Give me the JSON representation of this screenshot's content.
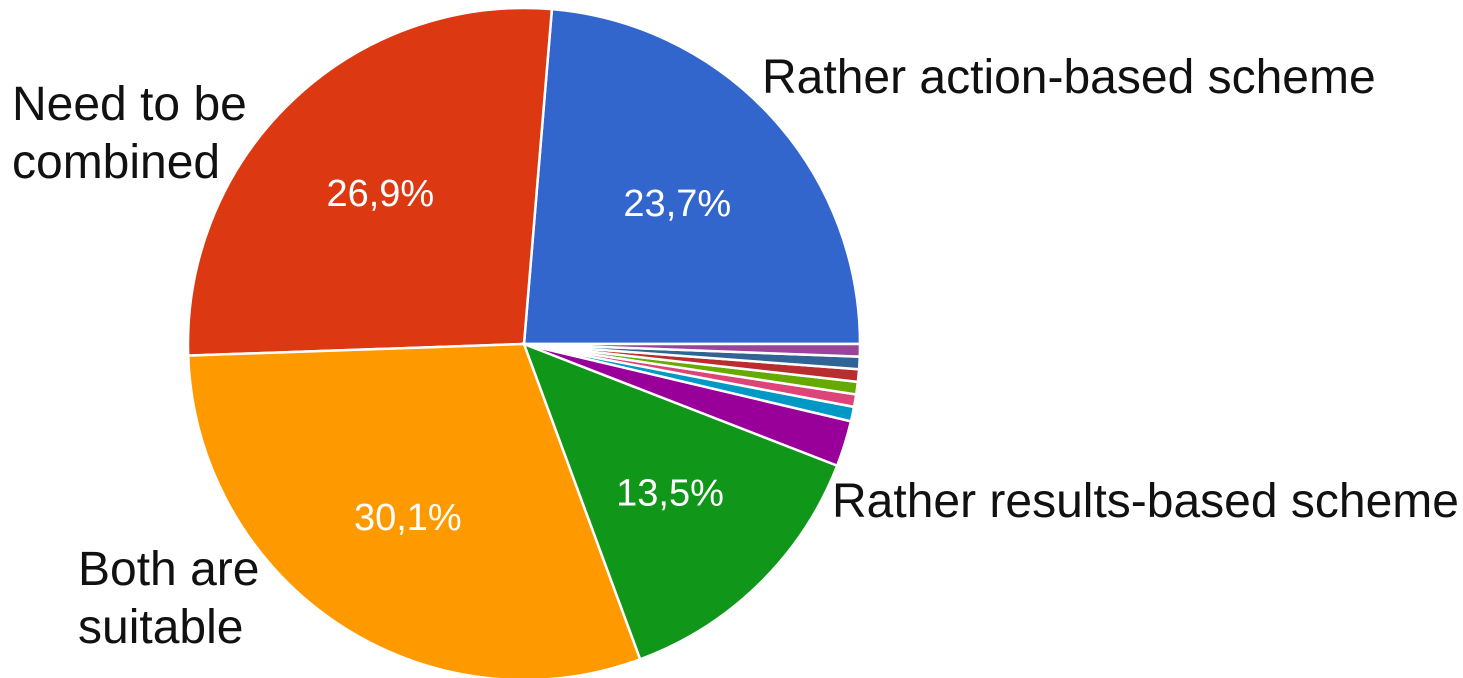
{
  "chart_data": {
    "type": "pie",
    "start_angle_deg": 0,
    "direction": "counterclockwise",
    "slices": [
      {
        "label": "Rather results-based scheme",
        "label_lines": [
          "Rather results-based scheme"
        ],
        "value": 23.7,
        "value_label": "23,7%",
        "color": "#3366cc"
      },
      {
        "label": "Both are suitable",
        "label_lines": [
          "Both are",
          "suitable"
        ],
        "value": 26.9,
        "value_label": "26,9%",
        "color": "#dc3912"
      },
      {
        "label": "Need to be combined",
        "label_lines": [
          "Need to be",
          "combined"
        ],
        "value": 30.1,
        "value_label": "30,1%",
        "color": "#ff9900"
      },
      {
        "label": "Rather action-based scheme",
        "label_lines": [
          "Rather action-based scheme"
        ],
        "value": 13.5,
        "value_label": "13,5%",
        "color": "#109618"
      },
      {
        "label": "",
        "label_lines": [],
        "value": 2.2,
        "value_label": "",
        "color": "#990099"
      },
      {
        "label": "",
        "label_lines": [],
        "value": 0.7,
        "value_label": "",
        "color": "#0099c6"
      },
      {
        "label": "",
        "label_lines": [],
        "value": 0.6,
        "value_label": "",
        "color": "#dd4477"
      },
      {
        "label": "",
        "label_lines": [],
        "value": 0.6,
        "value_label": "",
        "color": "#66aa00"
      },
      {
        "label": "",
        "label_lines": [],
        "value": 0.6,
        "value_label": "",
        "color": "#b82e2e"
      },
      {
        "label": "",
        "label_lines": [],
        "value": 0.6,
        "value_label": "",
        "color": "#316395"
      },
      {
        "label": "",
        "label_lines": [],
        "value": 0.6,
        "value_label": "",
        "color": "#994499"
      }
    ]
  }
}
